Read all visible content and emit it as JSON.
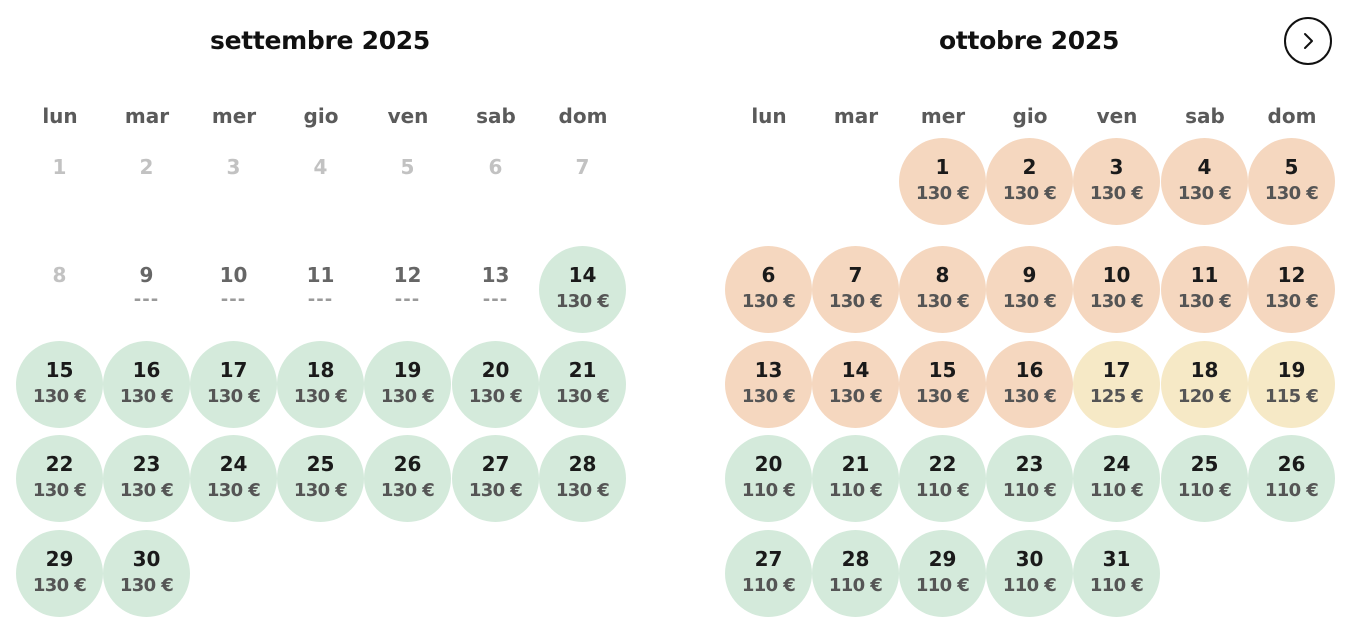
{
  "colors": {
    "green": "#d4eadb",
    "orange": "#f5d7bf",
    "yellow": "#f6e9c6"
  },
  "navigation": {
    "next_icon": "chevron-right-icon"
  },
  "months": [
    {
      "title": "settembre 2025",
      "weekdays": [
        "lun",
        "mar",
        "mer",
        "gio",
        "ven",
        "sab",
        "dom"
      ],
      "start_offset": 0,
      "days": [
        {
          "n": "1",
          "price": "",
          "status": "past"
        },
        {
          "n": "2",
          "price": "",
          "status": "past"
        },
        {
          "n": "3",
          "price": "",
          "status": "past"
        },
        {
          "n": "4",
          "price": "",
          "status": "past"
        },
        {
          "n": "5",
          "price": "",
          "status": "past"
        },
        {
          "n": "6",
          "price": "",
          "status": "past"
        },
        {
          "n": "7",
          "price": "",
          "status": "past"
        },
        {
          "n": "8",
          "price": "",
          "status": "past"
        },
        {
          "n": "9",
          "price": "---",
          "status": "noprice"
        },
        {
          "n": "10",
          "price": "---",
          "status": "noprice"
        },
        {
          "n": "11",
          "price": "---",
          "status": "noprice"
        },
        {
          "n": "12",
          "price": "---",
          "status": "noprice"
        },
        {
          "n": "13",
          "price": "---",
          "status": "noprice"
        },
        {
          "n": "14",
          "price": "130 €",
          "status": "green"
        },
        {
          "n": "15",
          "price": "130 €",
          "status": "green"
        },
        {
          "n": "16",
          "price": "130 €",
          "status": "green"
        },
        {
          "n": "17",
          "price": "130 €",
          "status": "green"
        },
        {
          "n": "18",
          "price": "130 €",
          "status": "green"
        },
        {
          "n": "19",
          "price": "130 €",
          "status": "green"
        },
        {
          "n": "20",
          "price": "130 €",
          "status": "green"
        },
        {
          "n": "21",
          "price": "130 €",
          "status": "green"
        },
        {
          "n": "22",
          "price": "130 €",
          "status": "green"
        },
        {
          "n": "23",
          "price": "130 €",
          "status": "green"
        },
        {
          "n": "24",
          "price": "130 €",
          "status": "green"
        },
        {
          "n": "25",
          "price": "130 €",
          "status": "green"
        },
        {
          "n": "26",
          "price": "130 €",
          "status": "green"
        },
        {
          "n": "27",
          "price": "130 €",
          "status": "green"
        },
        {
          "n": "28",
          "price": "130 €",
          "status": "green"
        },
        {
          "n": "29",
          "price": "130 €",
          "status": "green"
        },
        {
          "n": "30",
          "price": "130 €",
          "status": "green"
        }
      ]
    },
    {
      "title": "ottobre 2025",
      "weekdays": [
        "lun",
        "mar",
        "mer",
        "gio",
        "ven",
        "sab",
        "dom"
      ],
      "start_offset": 2,
      "days": [
        {
          "n": "1",
          "price": "130 €",
          "status": "orange"
        },
        {
          "n": "2",
          "price": "130 €",
          "status": "orange"
        },
        {
          "n": "3",
          "price": "130 €",
          "status": "orange"
        },
        {
          "n": "4",
          "price": "130 €",
          "status": "orange"
        },
        {
          "n": "5",
          "price": "130 €",
          "status": "orange"
        },
        {
          "n": "6",
          "price": "130 €",
          "status": "orange"
        },
        {
          "n": "7",
          "price": "130 €",
          "status": "orange"
        },
        {
          "n": "8",
          "price": "130 €",
          "status": "orange"
        },
        {
          "n": "9",
          "price": "130 €",
          "status": "orange"
        },
        {
          "n": "10",
          "price": "130 €",
          "status": "orange"
        },
        {
          "n": "11",
          "price": "130 €",
          "status": "orange"
        },
        {
          "n": "12",
          "price": "130 €",
          "status": "orange"
        },
        {
          "n": "13",
          "price": "130 €",
          "status": "orange"
        },
        {
          "n": "14",
          "price": "130 €",
          "status": "orange"
        },
        {
          "n": "15",
          "price": "130 €",
          "status": "orange"
        },
        {
          "n": "16",
          "price": "130 €",
          "status": "orange"
        },
        {
          "n": "17",
          "price": "125 €",
          "status": "yellow"
        },
        {
          "n": "18",
          "price": "120 €",
          "status": "yellow"
        },
        {
          "n": "19",
          "price": "115 €",
          "status": "yellow"
        },
        {
          "n": "20",
          "price": "110 €",
          "status": "green"
        },
        {
          "n": "21",
          "price": "110 €",
          "status": "green"
        },
        {
          "n": "22",
          "price": "110 €",
          "status": "green"
        },
        {
          "n": "23",
          "price": "110 €",
          "status": "green"
        },
        {
          "n": "24",
          "price": "110 €",
          "status": "green"
        },
        {
          "n": "25",
          "price": "110 €",
          "status": "green"
        },
        {
          "n": "26",
          "price": "110 €",
          "status": "green"
        },
        {
          "n": "27",
          "price": "110 €",
          "status": "green"
        },
        {
          "n": "28",
          "price": "110 €",
          "status": "green"
        },
        {
          "n": "29",
          "price": "110 €",
          "status": "green"
        },
        {
          "n": "30",
          "price": "110 €",
          "status": "green"
        },
        {
          "n": "31",
          "price": "110 €",
          "status": "green"
        }
      ]
    }
  ]
}
